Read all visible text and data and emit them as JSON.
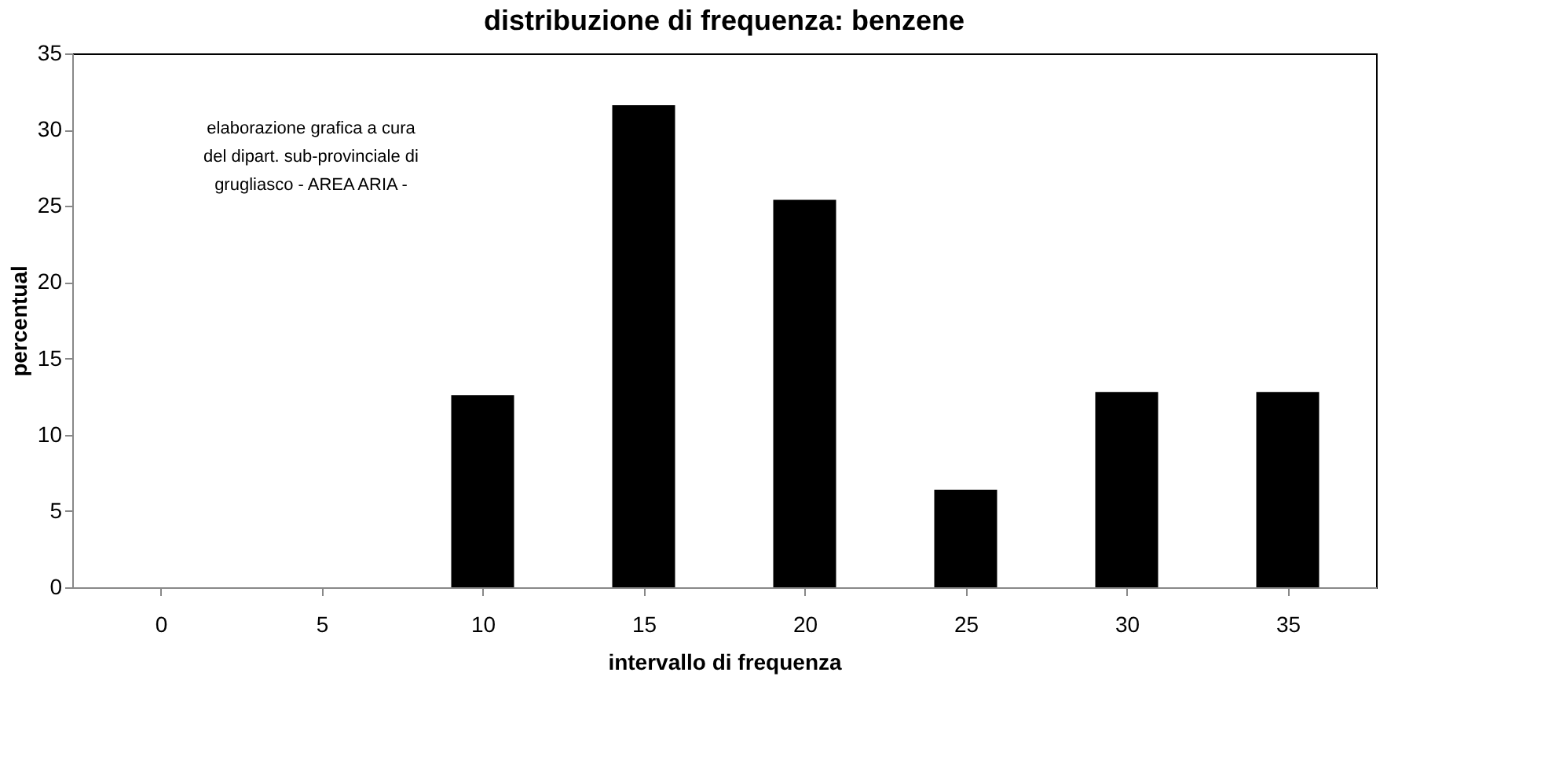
{
  "chart_data": {
    "type": "bar",
    "title": "distribuzione di frequenza: benzene",
    "xlabel": "intervallo di frequenza",
    "ylabel": "percentual",
    "categories": [
      "0",
      "5",
      "10",
      "15",
      "20",
      "25",
      "30",
      "35"
    ],
    "values": [
      0,
      0,
      12.6,
      31.6,
      25.4,
      6.4,
      12.8,
      12.8
    ],
    "color": "#000000",
    "ylim": [
      0,
      35
    ],
    "yticks": [
      0,
      5,
      10,
      15,
      20,
      25,
      30,
      35
    ],
    "grid": false,
    "annotations": [
      "elaborazione grafica a cura\ndel dipart. sub-provinciale di\ngrugliasco - AREA ARIA -"
    ]
  }
}
